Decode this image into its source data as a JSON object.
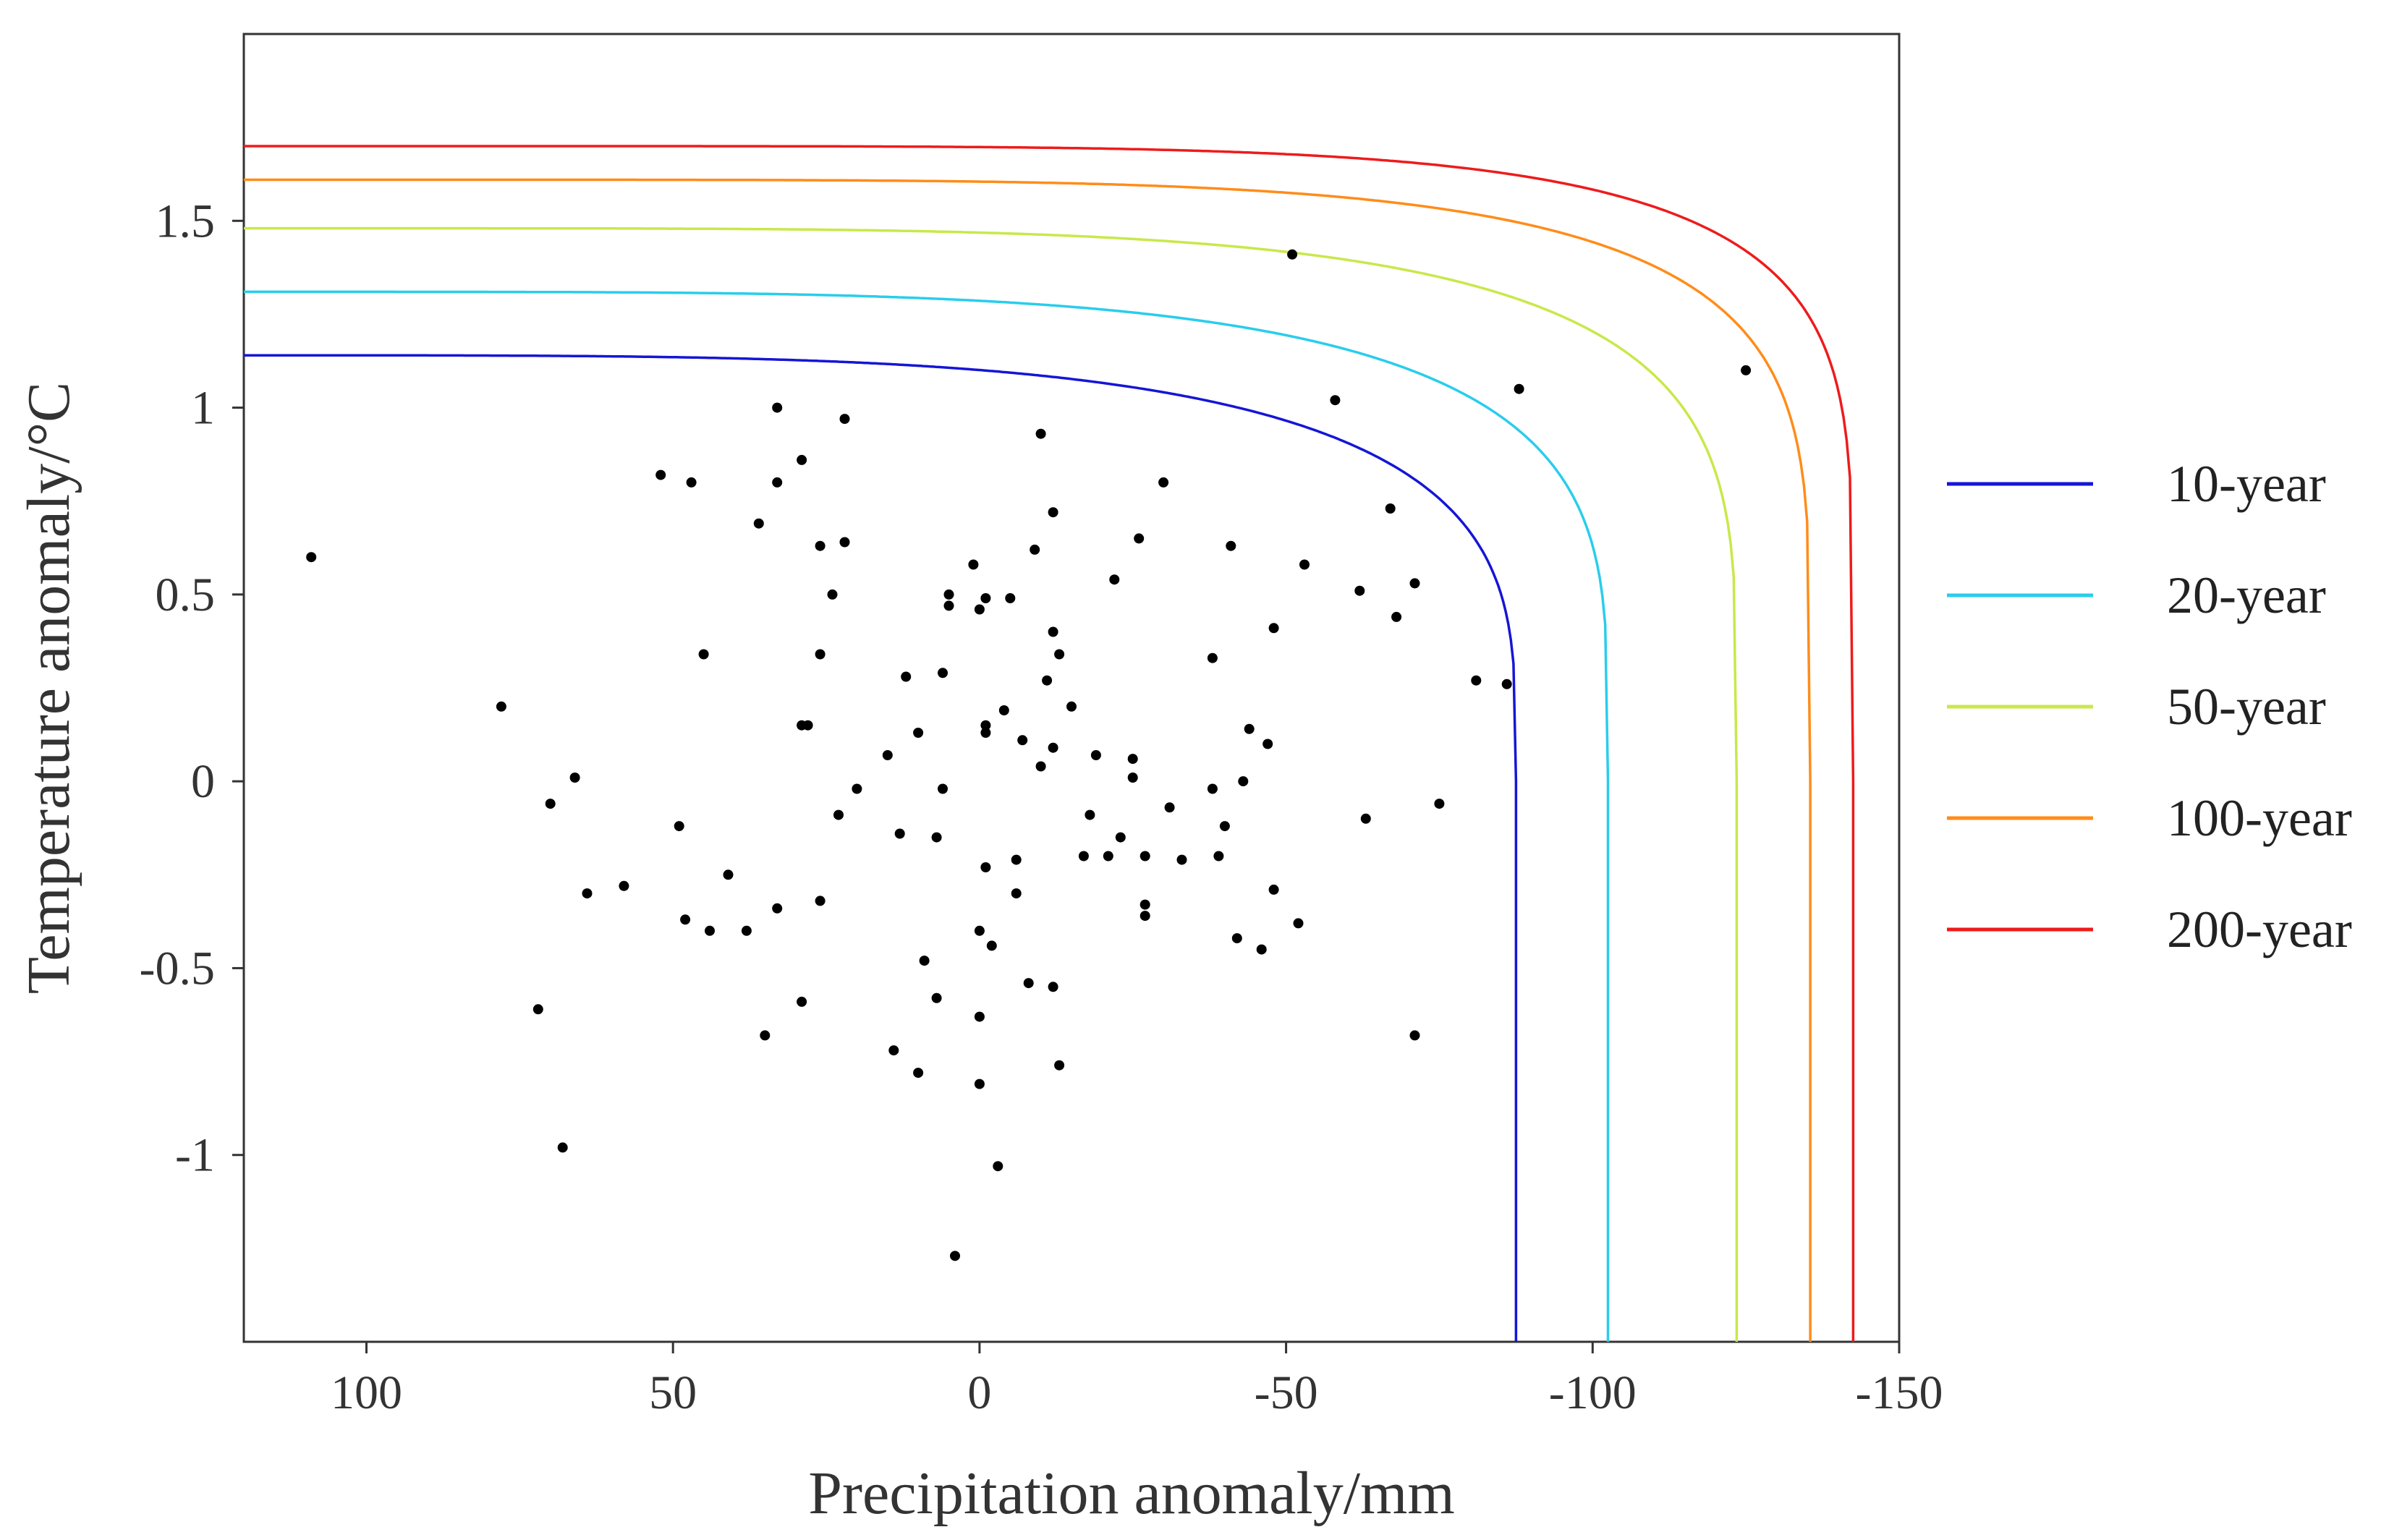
{
  "chart_data": {
    "type": "scatter",
    "title": "",
    "xlabel": "Precipitation anomaly/mm",
    "ylabel": "Temperature anomaly/°C",
    "xlim": [
      120,
      -150
    ],
    "ylim": [
      -1.5,
      2.0
    ],
    "x_ticks": [
      100,
      50,
      0,
      -50,
      -100,
      -150
    ],
    "y_ticks": [
      -1,
      -0.5,
      0,
      0.5,
      1,
      1.5
    ],
    "x_tick_labels": [
      "100",
      "50",
      "0",
      "-50",
      "-100",
      "-150"
    ],
    "y_tick_labels": [
      "-1",
      "-0.5",
      "0",
      "0.5",
      "1",
      "1.5"
    ],
    "grid": false,
    "legend_position": "right",
    "points": [
      {
        "x": 109,
        "y": 0.6
      },
      {
        "x": 78,
        "y": 0.2
      },
      {
        "x": 72,
        "y": -0.61
      },
      {
        "x": 70,
        "y": -0.06
      },
      {
        "x": 68,
        "y": -0.98
      },
      {
        "x": 66,
        "y": 0.01
      },
      {
        "x": 64,
        "y": -0.3
      },
      {
        "x": 58,
        "y": -0.28
      },
      {
        "x": 52,
        "y": 0.82
      },
      {
        "x": 49,
        "y": -0.12
      },
      {
        "x": 48,
        "y": -0.37
      },
      {
        "x": 47,
        "y": 0.8
      },
      {
        "x": 45,
        "y": 0.34
      },
      {
        "x": 44,
        "y": -0.4
      },
      {
        "x": 41,
        "y": -0.25
      },
      {
        "x": 38,
        "y": -0.4
      },
      {
        "x": 36,
        "y": 0.69
      },
      {
        "x": 35,
        "y": -0.68
      },
      {
        "x": 33,
        "y": 1.0
      },
      {
        "x": 33,
        "y": 0.8
      },
      {
        "x": 33,
        "y": -0.34
      },
      {
        "x": 29,
        "y": 0.86
      },
      {
        "x": 29,
        "y": 0.15
      },
      {
        "x": 28,
        "y": 0.15
      },
      {
        "x": 29,
        "y": -0.59
      },
      {
        "x": 26,
        "y": 0.63
      },
      {
        "x": 26,
        "y": 0.34
      },
      {
        "x": 26,
        "y": -0.32
      },
      {
        "x": 24,
        "y": 0.5
      },
      {
        "x": 23,
        "y": -0.09
      },
      {
        "x": 22,
        "y": 0.97
      },
      {
        "x": 22,
        "y": 0.64
      },
      {
        "x": 20,
        "y": -0.02
      },
      {
        "x": 15,
        "y": 0.07
      },
      {
        "x": 14,
        "y": -0.72
      },
      {
        "x": 13,
        "y": -0.14
      },
      {
        "x": 12,
        "y": 0.28
      },
      {
        "x": 10,
        "y": 0.13
      },
      {
        "x": 10,
        "y": -0.78
      },
      {
        "x": 9,
        "y": -0.48
      },
      {
        "x": 7,
        "y": -0.58
      },
      {
        "x": 7,
        "y": -0.15
      },
      {
        "x": 6,
        "y": 0.29
      },
      {
        "x": 6,
        "y": -0.02
      },
      {
        "x": 5,
        "y": 0.5
      },
      {
        "x": 5,
        "y": 0.47
      },
      {
        "x": 4,
        "y": -1.27
      },
      {
        "x": 1,
        "y": 0.58
      },
      {
        "x": 0,
        "y": 0.46
      },
      {
        "x": 0,
        "y": -0.63
      },
      {
        "x": 0,
        "y": -0.4
      },
      {
        "x": 0,
        "y": -0.81
      },
      {
        "x": -1,
        "y": 0.49
      },
      {
        "x": -1,
        "y": 0.15
      },
      {
        "x": -1,
        "y": 0.13
      },
      {
        "x": -1,
        "y": -0.23
      },
      {
        "x": -2,
        "y": -0.44
      },
      {
        "x": -3,
        "y": -1.03
      },
      {
        "x": -4,
        "y": 0.19
      },
      {
        "x": -5,
        "y": 0.49
      },
      {
        "x": -6,
        "y": -0.21
      },
      {
        "x": -6,
        "y": -0.3
      },
      {
        "x": -7,
        "y": 0.11
      },
      {
        "x": -8,
        "y": -0.54
      },
      {
        "x": -9,
        "y": 0.62
      },
      {
        "x": -10,
        "y": 0.04
      },
      {
        "x": -10,
        "y": 0.93
      },
      {
        "x": -11,
        "y": 0.27
      },
      {
        "x": -12,
        "y": 0.72
      },
      {
        "x": -12,
        "y": 0.4
      },
      {
        "x": -12,
        "y": 0.09
      },
      {
        "x": -12,
        "y": -0.55
      },
      {
        "x": -13,
        "y": 0.34
      },
      {
        "x": -13,
        "y": -0.76
      },
      {
        "x": -15,
        "y": 0.2
      },
      {
        "x": -17,
        "y": -0.2
      },
      {
        "x": -18,
        "y": -0.09
      },
      {
        "x": -19,
        "y": 0.07
      },
      {
        "x": -21,
        "y": -0.2
      },
      {
        "x": -22,
        "y": 0.54
      },
      {
        "x": -23,
        "y": -0.15
      },
      {
        "x": -25,
        "y": 0.01
      },
      {
        "x": -25,
        "y": 0.06
      },
      {
        "x": -26,
        "y": 0.65
      },
      {
        "x": -27,
        "y": -0.2
      },
      {
        "x": -27,
        "y": -0.33
      },
      {
        "x": -27,
        "y": -0.36
      },
      {
        "x": -30,
        "y": 0.8
      },
      {
        "x": -31,
        "y": -0.07
      },
      {
        "x": -33,
        "y": -0.21
      },
      {
        "x": -38,
        "y": 0.33
      },
      {
        "x": -38,
        "y": -0.02
      },
      {
        "x": -39,
        "y": -0.2
      },
      {
        "x": -40,
        "y": -0.12
      },
      {
        "x": -41,
        "y": 0.63
      },
      {
        "x": -42,
        "y": -0.42
      },
      {
        "x": -43,
        "y": 0.0
      },
      {
        "x": -44,
        "y": 0.14
      },
      {
        "x": -46,
        "y": -0.45
      },
      {
        "x": -47,
        "y": 0.1
      },
      {
        "x": -48,
        "y": -0.29
      },
      {
        "x": -48,
        "y": 0.41
      },
      {
        "x": -51,
        "y": 1.41
      },
      {
        "x": -52,
        "y": -0.38
      },
      {
        "x": -53,
        "y": 0.58
      },
      {
        "x": -58,
        "y": 1.02
      },
      {
        "x": -62,
        "y": 0.51
      },
      {
        "x": -63,
        "y": -0.1
      },
      {
        "x": -67,
        "y": 0.73
      },
      {
        "x": -68,
        "y": 0.44
      },
      {
        "x": -71,
        "y": 0.53
      },
      {
        "x": -71,
        "y": -0.68
      },
      {
        "x": -75,
        "y": -0.06
      },
      {
        "x": -81,
        "y": 0.27
      },
      {
        "x": -86,
        "y": 0.26
      },
      {
        "x": -88,
        "y": 1.05
      },
      {
        "x": -125,
        "y": 1.1
      }
    ],
    "series": [
      {
        "name": "10-year",
        "color": "#1515d6",
        "t_max": 1.14,
        "p_max": -87.5,
        "shape_exponent": 3.8
      },
      {
        "name": "20-year",
        "color": "#29cdec",
        "t_max": 1.31,
        "p_max": -102.5,
        "shape_exponent": 4.2
      },
      {
        "name": "50-year",
        "color": "#c8e84a",
        "t_max": 1.48,
        "p_max": -123.5,
        "shape_exponent": 4.7
      },
      {
        "name": "100-year",
        "color": "#ff8c1a",
        "t_max": 1.61,
        "p_max": -135.5,
        "shape_exponent": 5.4
      },
      {
        "name": "200-year",
        "color": "#ee1b1b",
        "t_max": 1.7,
        "p_max": -142.5,
        "shape_exponent": 6.0
      }
    ]
  }
}
